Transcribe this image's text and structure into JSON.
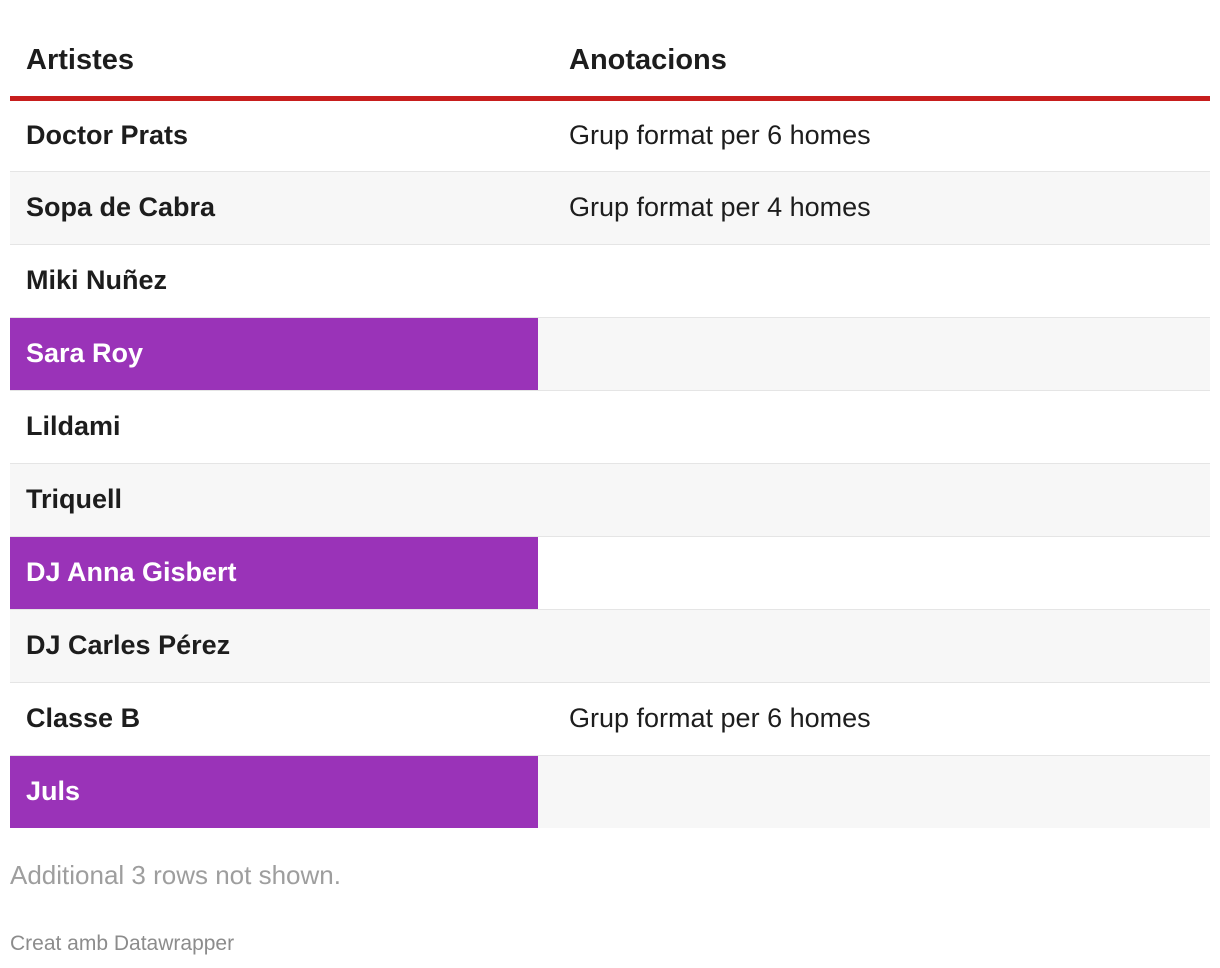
{
  "table": {
    "headers": {
      "artist": "Artistes",
      "notes": "Anotacions"
    },
    "rows": [
      {
        "artist": "Doctor Prats",
        "note": "Grup format per 6 homes",
        "highlight": false
      },
      {
        "artist": "Sopa de Cabra",
        "note": "Grup format per 4 homes",
        "highlight": false
      },
      {
        "artist": "Miki Nuñez",
        "note": "",
        "highlight": false
      },
      {
        "artist": "Sara Roy",
        "note": "",
        "highlight": true
      },
      {
        "artist": "Lildami",
        "note": "",
        "highlight": false
      },
      {
        "artist": "Triquell",
        "note": "",
        "highlight": false
      },
      {
        "artist": "DJ Anna Gisbert",
        "note": "",
        "highlight": true
      },
      {
        "artist": "DJ Carles Pérez",
        "note": "",
        "highlight": false
      },
      {
        "artist": "Classe B",
        "note": "Grup format per 6 homes",
        "highlight": false
      },
      {
        "artist": "Juls",
        "note": "",
        "highlight": true
      }
    ]
  },
  "footer": {
    "more_rows": "Additional 3 rows not shown.",
    "credit": "Creat amb Datawrapper"
  },
  "colors": {
    "header_rule": "#c71e1d",
    "highlight": "#9a33b8",
    "stripe": "#f7f7f7"
  }
}
